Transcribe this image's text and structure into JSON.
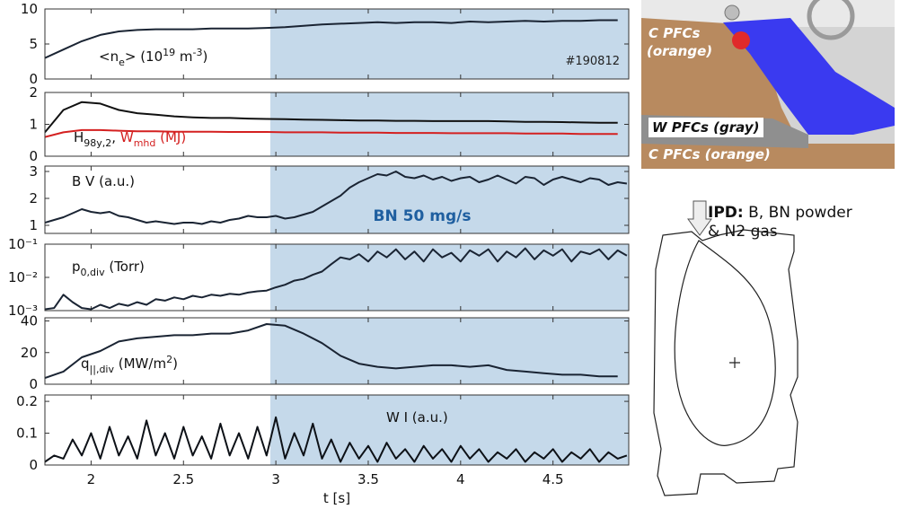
{
  "chart_data": [
    {
      "type": "line",
      "xlim": [
        1.75,
        4.91
      ],
      "ylim": [
        0,
        10
      ],
      "yticks": [
        0,
        5,
        10
      ],
      "highlight": [
        2.97,
        4.91
      ],
      "highlight_color": "#c5d9ea",
      "label": [
        {
          "text": "<n",
          "style": "normal"
        },
        {
          "text": "e",
          "style": "sub"
        },
        {
          "text": "> (10",
          "style": "normal"
        },
        {
          "text": "19",
          "style": "sup"
        },
        {
          "text": " m",
          "style": "normal"
        },
        {
          "text": "-3",
          "style": "sup"
        },
        {
          "text": ")",
          "style": "normal"
        }
      ],
      "annotations": [
        {
          "text": "#190812",
          "color": "#222",
          "bold": false
        }
      ],
      "x": [
        1.75,
        1.85,
        1.95,
        2.05,
        2.15,
        2.25,
        2.35,
        2.45,
        2.55,
        2.65,
        2.75,
        2.85,
        2.95,
        3.05,
        3.15,
        3.25,
        3.35,
        3.45,
        3.55,
        3.65,
        3.75,
        3.85,
        3.95,
        4.05,
        4.15,
        4.25,
        4.35,
        4.45,
        4.55,
        4.65,
        4.75,
        4.85
      ],
      "series": [
        {
          "color": "#1a2433",
          "values": [
            3.0,
            4.2,
            5.4,
            6.3,
            6.8,
            7.0,
            7.1,
            7.1,
            7.1,
            7.2,
            7.2,
            7.2,
            7.3,
            7.4,
            7.6,
            7.8,
            7.9,
            8.0,
            8.1,
            8.0,
            8.1,
            8.1,
            8.0,
            8.2,
            8.1,
            8.2,
            8.3,
            8.2,
            8.3,
            8.3,
            8.4,
            8.4
          ]
        }
      ]
    },
    {
      "type": "line",
      "xlim": [
        1.75,
        4.91
      ],
      "ylim": [
        0,
        2
      ],
      "yticks": [
        0,
        1,
        2
      ],
      "highlight": [
        2.97,
        4.91
      ],
      "highlight_color": "#c5d9ea",
      "label": [
        {
          "text": "H",
          "style": "normal",
          "color": "#111"
        },
        {
          "text": "98y,2",
          "style": "sub",
          "color": "#111"
        },
        {
          "text": ", ",
          "style": "normal",
          "color": "#111"
        },
        {
          "text": "W",
          "style": "normal",
          "color": "#d42020"
        },
        {
          "text": "mhd",
          "style": "sub",
          "color": "#d42020"
        },
        {
          "text": " (MJ)",
          "style": "normal",
          "color": "#d42020"
        }
      ],
      "annotations": [],
      "x": [
        1.75,
        1.85,
        1.95,
        2.05,
        2.15,
        2.25,
        2.35,
        2.45,
        2.55,
        2.65,
        2.75,
        2.85,
        2.95,
        3.05,
        3.15,
        3.25,
        3.35,
        3.45,
        3.55,
        3.65,
        3.75,
        3.85,
        3.95,
        4.05,
        4.15,
        4.25,
        4.35,
        4.45,
        4.55,
        4.65,
        4.75,
        4.85
      ],
      "series": [
        {
          "color": "#111111",
          "values": [
            0.75,
            1.45,
            1.7,
            1.65,
            1.45,
            1.35,
            1.3,
            1.25,
            1.22,
            1.2,
            1.2,
            1.18,
            1.17,
            1.16,
            1.15,
            1.14,
            1.13,
            1.12,
            1.12,
            1.11,
            1.11,
            1.1,
            1.1,
            1.1,
            1.1,
            1.09,
            1.08,
            1.08,
            1.07,
            1.06,
            1.05,
            1.05
          ]
        },
        {
          "color": "#d42020",
          "values": [
            0.6,
            0.75,
            0.82,
            0.82,
            0.8,
            0.78,
            0.78,
            0.77,
            0.77,
            0.77,
            0.76,
            0.76,
            0.76,
            0.75,
            0.75,
            0.75,
            0.74,
            0.74,
            0.74,
            0.73,
            0.73,
            0.73,
            0.72,
            0.72,
            0.72,
            0.72,
            0.71,
            0.71,
            0.71,
            0.7,
            0.7,
            0.7
          ]
        }
      ]
    },
    {
      "type": "line",
      "xlim": [
        1.75,
        4.91
      ],
      "ylim": [
        0.7,
        3.2
      ],
      "yticks": [
        1,
        2,
        3
      ],
      "highlight": [
        2.97,
        4.91
      ],
      "highlight_color": "#c5d9ea",
      "label": [
        {
          "text": "B V (a.u.)",
          "style": "normal"
        }
      ],
      "annotations": [
        {
          "text": "BN 50 mg/s",
          "color": "#1f5fa0",
          "bold": true
        }
      ],
      "x": [
        1.75,
        1.8,
        1.85,
        1.9,
        1.95,
        2.0,
        2.05,
        2.1,
        2.15,
        2.2,
        2.25,
        2.3,
        2.35,
        2.4,
        2.45,
        2.5,
        2.55,
        2.6,
        2.65,
        2.7,
        2.75,
        2.8,
        2.85,
        2.9,
        2.95,
        3.0,
        3.05,
        3.1,
        3.15,
        3.2,
        3.25,
        3.3,
        3.35,
        3.4,
        3.45,
        3.5,
        3.55,
        3.6,
        3.65,
        3.7,
        3.75,
        3.8,
        3.85,
        3.9,
        3.95,
        4.0,
        4.05,
        4.1,
        4.15,
        4.2,
        4.25,
        4.3,
        4.35,
        4.4,
        4.45,
        4.5,
        4.55,
        4.6,
        4.65,
        4.7,
        4.75,
        4.8,
        4.85,
        4.9
      ],
      "series": [
        {
          "color": "#1a2433",
          "values": [
            1.1,
            1.2,
            1.3,
            1.45,
            1.6,
            1.5,
            1.45,
            1.5,
            1.35,
            1.3,
            1.2,
            1.1,
            1.15,
            1.1,
            1.05,
            1.1,
            1.1,
            1.05,
            1.15,
            1.1,
            1.2,
            1.25,
            1.35,
            1.3,
            1.3,
            1.35,
            1.25,
            1.3,
            1.4,
            1.5,
            1.7,
            1.9,
            2.1,
            2.4,
            2.6,
            2.75,
            2.9,
            2.85,
            3.0,
            2.8,
            2.75,
            2.85,
            2.7,
            2.8,
            2.65,
            2.75,
            2.8,
            2.6,
            2.7,
            2.85,
            2.7,
            2.55,
            2.8,
            2.75,
            2.5,
            2.7,
            2.8,
            2.7,
            2.6,
            2.75,
            2.7,
            2.5,
            2.6,
            2.55
          ]
        }
      ]
    },
    {
      "type": "line",
      "log": true,
      "xlim": [
        1.75,
        4.91
      ],
      "ylim": [
        0.001,
        0.1
      ],
      "yticks": [
        {
          "value": 0.001,
          "label": "10⁻³"
        },
        {
          "value": 0.01,
          "label": "10⁻²"
        },
        {
          "value": 0.1,
          "label": "10⁻¹"
        }
      ],
      "highlight": [
        2.97,
        4.91
      ],
      "highlight_color": "#c5d9ea",
      "label": [
        {
          "text": "p",
          "style": "normal"
        },
        {
          "text": "0,div",
          "style": "sub"
        },
        {
          "text": " (Torr)",
          "style": "normal"
        }
      ],
      "annotations": [],
      "x": [
        1.75,
        1.8,
        1.85,
        1.9,
        1.95,
        2.0,
        2.05,
        2.1,
        2.15,
        2.2,
        2.25,
        2.3,
        2.35,
        2.4,
        2.45,
        2.5,
        2.55,
        2.6,
        2.65,
        2.7,
        2.75,
        2.8,
        2.85,
        2.9,
        2.95,
        3.0,
        3.05,
        3.1,
        3.15,
        3.2,
        3.25,
        3.3,
        3.35,
        3.4,
        3.45,
        3.5,
        3.55,
        3.6,
        3.65,
        3.7,
        3.75,
        3.8,
        3.85,
        3.9,
        3.95,
        4.0,
        4.05,
        4.1,
        4.15,
        4.2,
        4.25,
        4.3,
        4.35,
        4.4,
        4.45,
        4.5,
        4.55,
        4.6,
        4.65,
        4.7,
        4.75,
        4.8,
        4.85,
        4.9
      ],
      "series": [
        {
          "color": "#1a2433",
          "values": [
            0.0011,
            0.0012,
            0.003,
            0.0018,
            0.0012,
            0.0011,
            0.0015,
            0.0012,
            0.0016,
            0.0014,
            0.0018,
            0.0015,
            0.0022,
            0.002,
            0.0025,
            0.0022,
            0.0028,
            0.0025,
            0.003,
            0.0028,
            0.0032,
            0.003,
            0.0035,
            0.0038,
            0.004,
            0.005,
            0.006,
            0.008,
            0.009,
            0.012,
            0.015,
            0.025,
            0.04,
            0.035,
            0.05,
            0.03,
            0.06,
            0.04,
            0.07,
            0.035,
            0.06,
            0.03,
            0.07,
            0.04,
            0.055,
            0.03,
            0.065,
            0.045,
            0.07,
            0.03,
            0.06,
            0.04,
            0.075,
            0.035,
            0.065,
            0.045,
            0.07,
            0.03,
            0.06,
            0.05,
            0.07,
            0.035,
            0.065,
            0.045
          ]
        }
      ]
    },
    {
      "type": "line",
      "xlim": [
        1.75,
        4.91
      ],
      "ylim": [
        0,
        42
      ],
      "yticks": [
        0,
        20,
        40
      ],
      "highlight": [
        2.97,
        4.91
      ],
      "highlight_color": "#c5d9ea",
      "label": [
        {
          "text": "q",
          "style": "normal"
        },
        {
          "text": "||,div",
          "style": "sub"
        },
        {
          "text": " (MW/m",
          "style": "normal"
        },
        {
          "text": "2",
          "style": "sup"
        },
        {
          "text": ")",
          "style": "normal"
        }
      ],
      "annotations": [],
      "x": [
        1.75,
        1.85,
        1.95,
        2.05,
        2.15,
        2.25,
        2.35,
        2.45,
        2.55,
        2.65,
        2.75,
        2.85,
        2.95,
        3.05,
        3.15,
        3.25,
        3.35,
        3.45,
        3.55,
        3.65,
        3.75,
        3.85,
        3.95,
        4.05,
        4.15,
        4.25,
        4.35,
        4.45,
        4.55,
        4.65,
        4.75,
        4.85
      ],
      "series": [
        {
          "color": "#1a2433",
          "values": [
            4,
            8,
            17,
            21,
            27,
            29,
            30,
            31,
            31,
            32,
            32,
            34,
            38,
            37,
            32,
            26,
            18,
            13,
            11,
            10,
            11,
            12,
            12,
            11,
            12,
            9,
            8,
            7,
            6,
            6,
            5,
            5
          ]
        }
      ]
    },
    {
      "type": "line",
      "xlim": [
        1.75,
        4.91
      ],
      "ylim": [
        0,
        0.22
      ],
      "yticks": [
        0,
        0.1,
        0.2
      ],
      "xticks": [
        2,
        2.5,
        3,
        3.5,
        4,
        4.5
      ],
      "xlabel": "t [s]",
      "highlight": [
        2.97,
        4.91
      ],
      "highlight_color": "#c5d9ea",
      "label": [
        {
          "text": "W I (a.u.)",
          "style": "normal"
        }
      ],
      "annotations": [],
      "x": [
        1.75,
        1.8,
        1.85,
        1.9,
        1.95,
        2.0,
        2.05,
        2.1,
        2.15,
        2.2,
        2.25,
        2.3,
        2.35,
        2.4,
        2.45,
        2.5,
        2.55,
        2.6,
        2.65,
        2.7,
        2.75,
        2.8,
        2.85,
        2.9,
        2.95,
        3.0,
        3.05,
        3.1,
        3.15,
        3.2,
        3.25,
        3.3,
        3.35,
        3.4,
        3.45,
        3.5,
        3.55,
        3.6,
        3.65,
        3.7,
        3.75,
        3.8,
        3.85,
        3.9,
        3.95,
        4.0,
        4.05,
        4.1,
        4.15,
        4.2,
        4.25,
        4.3,
        4.35,
        4.4,
        4.45,
        4.5,
        4.55,
        4.6,
        4.65,
        4.7,
        4.75,
        4.8,
        4.85,
        4.9
      ],
      "series": [
        {
          "color": "#0d1117",
          "values": [
            0.01,
            0.03,
            0.02,
            0.08,
            0.03,
            0.1,
            0.02,
            0.12,
            0.03,
            0.09,
            0.02,
            0.14,
            0.03,
            0.1,
            0.02,
            0.12,
            0.03,
            0.09,
            0.02,
            0.13,
            0.03,
            0.1,
            0.02,
            0.12,
            0.03,
            0.15,
            0.02,
            0.1,
            0.03,
            0.13,
            0.02,
            0.08,
            0.01,
            0.07,
            0.02,
            0.06,
            0.01,
            0.07,
            0.02,
            0.05,
            0.01,
            0.06,
            0.02,
            0.05,
            0.01,
            0.06,
            0.02,
            0.05,
            0.01,
            0.04,
            0.02,
            0.05,
            0.01,
            0.04,
            0.02,
            0.05,
            0.01,
            0.04,
            0.02,
            0.05,
            0.01,
            0.04,
            0.02,
            0.03
          ]
        }
      ]
    }
  ],
  "figure": {
    "render_labels": [
      "C PFCs",
      "(orange)",
      "W PFCs (gray)",
      "C PFCs (orange)"
    ],
    "ipd": {
      "head": "IPD:",
      "line1": " B, BN powder",
      "line2": "& N2 gas"
    }
  }
}
